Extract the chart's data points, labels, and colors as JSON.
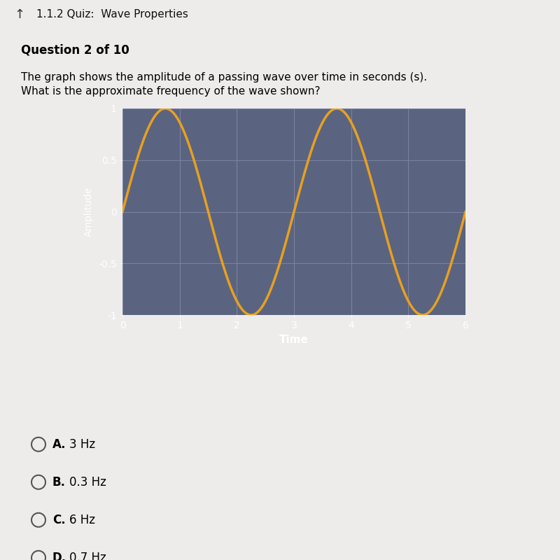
{
  "title_bar_text": "1.1.2 Quiz:  Wave Properties",
  "question_text": "Question 2 of 10",
  "description_line1": "The graph shows the amplitude of a passing wave over time in seconds (s).",
  "description_line2": "What is the approximate frequency of the wave shown?",
  "xlabel": "Time",
  "ylabel": "Amplitude",
  "xlim": [
    0,
    6
  ],
  "ylim": [
    -1,
    1
  ],
  "xticks": [
    0,
    1,
    2,
    3,
    4,
    5,
    6
  ],
  "ytick_vals": [
    -1,
    -0.5,
    0,
    0.5,
    1
  ],
  "ytick_labels": [
    "-1",
    "-0.5",
    "0",
    "0.5",
    "1"
  ],
  "wave_color": "#E8A020",
  "wave_linewidth": 2.5,
  "wave_frequency": 0.3333,
  "plot_bg_color": "#5A6480",
  "plot_grid_color": "#7A82A0",
  "outer_bg_color": "#EDECEA",
  "title_bar_bg_color": "#DDDBD8",
  "separator_color": "#C8C6C3",
  "answer_options": [
    {
      "label": "A.",
      "text": "3 Hz"
    },
    {
      "label": "B.",
      "text": "0.3 Hz"
    },
    {
      "label": "C.",
      "text": "6 Hz"
    },
    {
      "label": "D.",
      "text": "0.7 Hz"
    }
  ],
  "title_fontsize": 11,
  "question_fontsize": 12,
  "desc_fontsize": 11,
  "answer_fontsize": 12
}
